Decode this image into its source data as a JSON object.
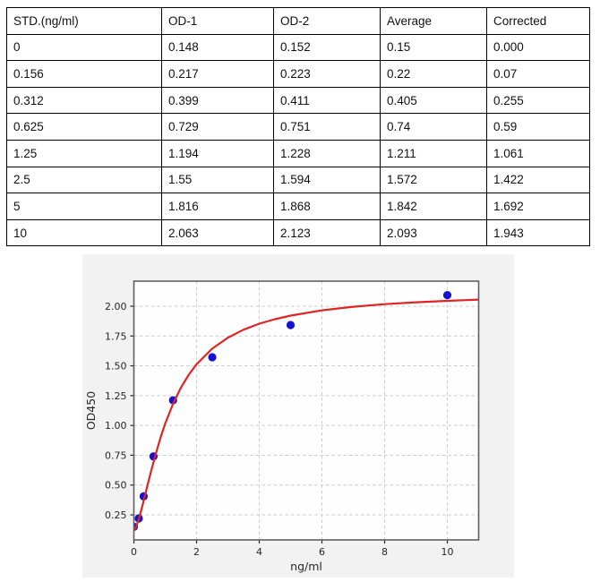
{
  "table": {
    "columns": [
      "STD.(ng/ml)",
      "OD-1",
      "OD-2",
      "Average",
      "Corrected"
    ],
    "rows": [
      [
        "0",
        "0.148",
        "0.152",
        "0.15",
        "0.000"
      ],
      [
        "0.156",
        "0.217",
        "0.223",
        "0.22",
        "0.07"
      ],
      [
        "0.312",
        "0.399",
        "0.411",
        "0.405",
        "0.255"
      ],
      [
        "0.625",
        "0.729",
        "0.751",
        "0.74",
        "0.59"
      ],
      [
        "1.25",
        "1.194",
        "1.228",
        "1.211",
        "1.061"
      ],
      [
        "2.5",
        "1.55",
        "1.594",
        "1.572",
        "1.422"
      ],
      [
        "5",
        "1.816",
        "1.868",
        "1.842",
        "1.692"
      ],
      [
        "10",
        "2.063",
        "2.123",
        "2.093",
        "1.943"
      ]
    ]
  },
  "chart_data": {
    "type": "scatter",
    "title": "",
    "xlabel": "ng/ml",
    "ylabel": "OD450",
    "xlim": [
      0,
      11
    ],
    "ylim": [
      0.04,
      2.21
    ],
    "x_ticks": [
      0,
      2,
      4,
      6,
      8,
      10
    ],
    "y_ticks": [
      0.25,
      0.5,
      0.75,
      1.0,
      1.25,
      1.5,
      1.75,
      2.0
    ],
    "grid": true,
    "legend_position": "none",
    "series": [
      {
        "name": "standard-points",
        "type": "scatter",
        "color": "#1212d0",
        "x": [
          0,
          0.156,
          0.312,
          0.625,
          1.25,
          2.5,
          5,
          10
        ],
        "y": [
          0.15,
          0.22,
          0.405,
          0.74,
          1.211,
          1.572,
          1.842,
          2.093
        ]
      },
      {
        "name": "fit-curve",
        "type": "line",
        "color": "#e02424",
        "x": [
          0,
          0.05,
          0.1,
          0.156,
          0.2,
          0.3,
          0.4,
          0.5,
          0.625,
          0.75,
          0.875,
          1.0,
          1.25,
          1.5,
          1.75,
          2.0,
          2.5,
          3.0,
          3.5,
          4.0,
          4.5,
          5.0,
          6.0,
          7.0,
          8.0,
          9.0,
          10.0,
          10.5,
          11.0
        ],
        "y": [
          0.12,
          0.138,
          0.17,
          0.215,
          0.255,
          0.355,
          0.461,
          0.566,
          0.692,
          0.81,
          0.918,
          1.016,
          1.182,
          1.317,
          1.425,
          1.513,
          1.644,
          1.736,
          1.803,
          1.853,
          1.891,
          1.921,
          1.965,
          1.995,
          2.017,
          2.033,
          2.045,
          2.05,
          2.055
        ]
      }
    ],
    "colors": {
      "figure_bg": "#f2f2f2",
      "plot_bg": "#fefefe",
      "frame": "#606060",
      "grid": "#cccccc",
      "tick_text": "#262626"
    }
  }
}
